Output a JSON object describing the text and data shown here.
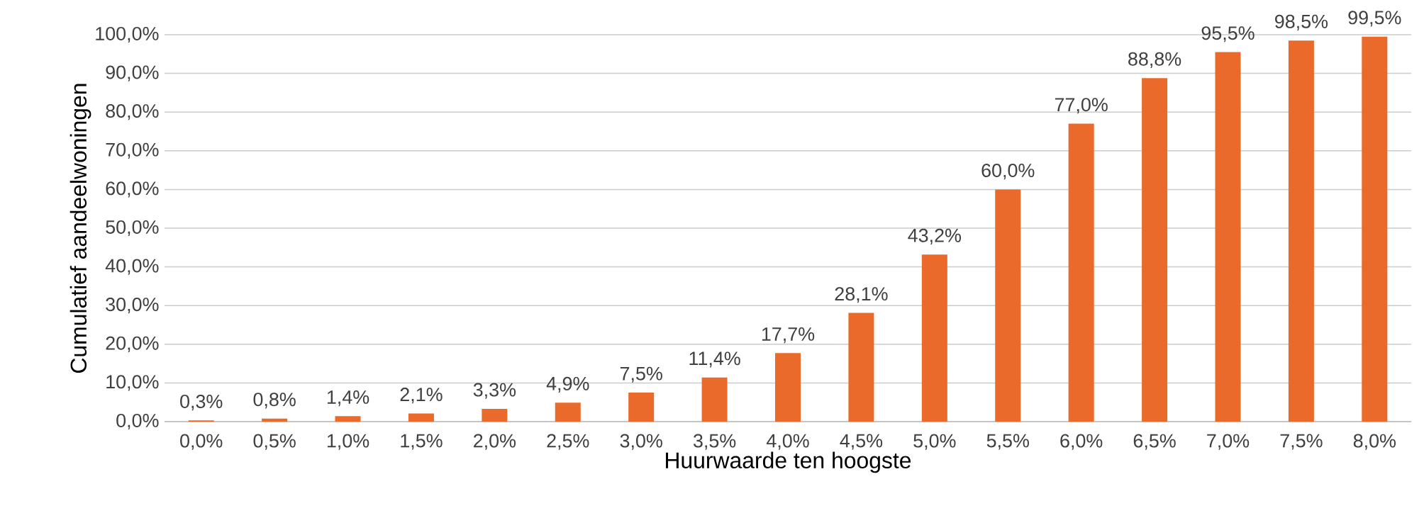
{
  "chart_data": {
    "type": "bar",
    "xlabel": "Huurwaarde ten hoogste",
    "ylabel": "Cumulatief aandeelwoningen",
    "categories": [
      "0,0%",
      "0,5%",
      "1,0%",
      "1,5%",
      "2,0%",
      "2,5%",
      "3,0%",
      "3,5%",
      "4,0%",
      "4,5%",
      "5,0%",
      "5,5%",
      "6,0%",
      "6,5%",
      "7,0%",
      "7,5%",
      "8,0%"
    ],
    "values": [
      0.3,
      0.8,
      1.4,
      2.1,
      3.3,
      4.9,
      7.5,
      11.4,
      17.7,
      28.1,
      43.2,
      60.0,
      77.0,
      88.8,
      95.5,
      98.5,
      99.5
    ],
    "value_labels": [
      "0,3%",
      "0,8%",
      "1,4%",
      "2,1%",
      "3,3%",
      "4,9%",
      "7,5%",
      "11,4%",
      "17,7%",
      "28,1%",
      "43,2%",
      "60,0%",
      "77,0%",
      "88,8%",
      "95,5%",
      "98,5%",
      "99,5%"
    ],
    "color": "#e96a2a",
    "ylim": [
      0,
      100
    ],
    "yticks": [
      {
        "value": 0,
        "label": "0,0%"
      },
      {
        "value": 10,
        "label": "10,0%"
      },
      {
        "value": 20,
        "label": "20,0%"
      },
      {
        "value": 30,
        "label": "30,0%"
      },
      {
        "value": 40,
        "label": "40,0%"
      },
      {
        "value": 50,
        "label": "50,0%"
      },
      {
        "value": 60,
        "label": "60,0%"
      },
      {
        "value": 70,
        "label": "70,0%"
      },
      {
        "value": 80,
        "label": "80,0%"
      },
      {
        "value": 90,
        "label": "90,0%"
      },
      {
        "value": 100,
        "label": "100,0%"
      }
    ],
    "grid": "y"
  }
}
